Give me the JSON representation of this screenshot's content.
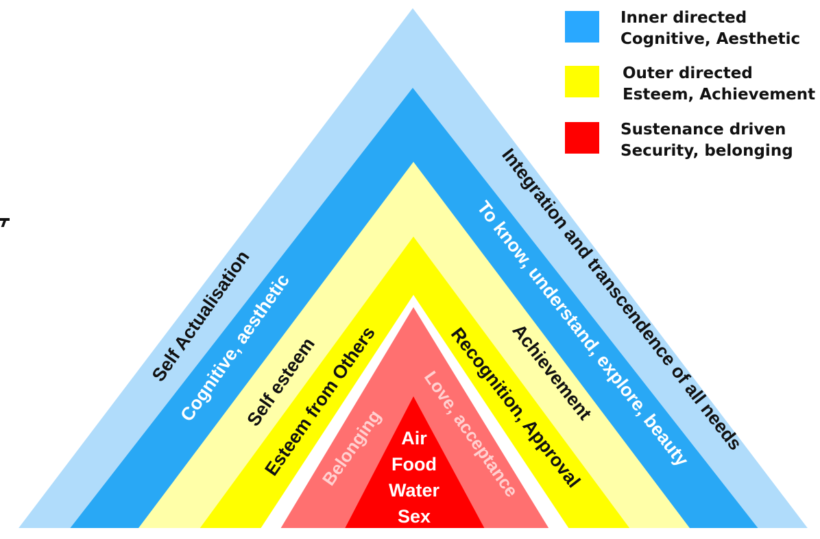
{
  "legend": {
    "items": [
      {
        "color": "#29a8ff",
        "line1": "Inner directed",
        "line2": "Cognitive, Aesthetic"
      },
      {
        "color": "#ffff00",
        "line1": "Outer directed",
        "line2": "Esteem, Achievement"
      },
      {
        "color": "#ff0000",
        "line1": "Sustenance driven",
        "line2": "Security, belonging"
      }
    ]
  },
  "pyramid": {
    "bands": [
      {
        "color": "#b0dcfb"
      },
      {
        "color": "#29a8f5"
      },
      {
        "color": "#ffffa8"
      },
      {
        "color": "#ffff00"
      },
      {
        "color": "#ff7070"
      },
      {
        "color": "#ff0000"
      }
    ],
    "labels": {
      "self_actualisation": "Self Actualisation",
      "cognitive_aesthetic": "Cognitive, aesthetic",
      "self_esteem": "Self esteem",
      "esteem_from_others": "Esteem from Others",
      "belonging": "Belonging",
      "integration": "Integration and transcendence of all needs",
      "to_know": "To know, understand, explore, beauty",
      "achievement": "Achievement",
      "recognition": "Recognition, Approval",
      "love_acceptance": "Love, acceptance"
    },
    "core": [
      "Air",
      "Food",
      "Water",
      "Sex"
    ]
  }
}
